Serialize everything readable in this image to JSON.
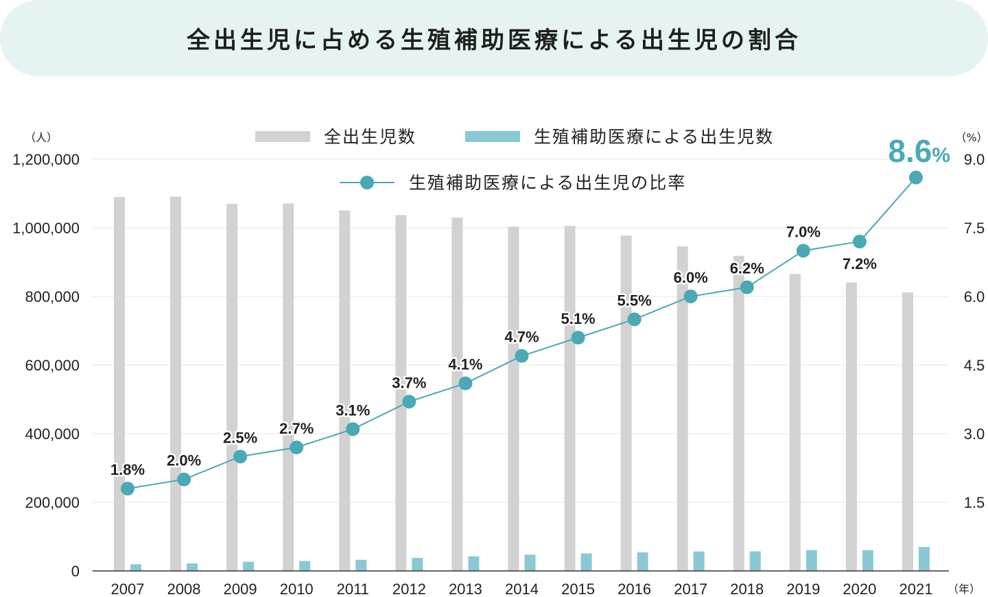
{
  "chart_data": {
    "type": "bar+line",
    "title": "全出生児に占める生殖補助医療による出生児の割合",
    "left_axis_unit": "（人）",
    "right_axis_unit": "（%）",
    "x_axis_unit": "（年）",
    "left_ylim": [
      0,
      1200000
    ],
    "right_ylim": [
      0,
      9.0
    ],
    "left_ticks": [
      "0",
      "200,000",
      "400,000",
      "600,000",
      "800,000",
      "1,000,000",
      "1,200,000"
    ],
    "left_tick_values": [
      0,
      200000,
      400000,
      600000,
      800000,
      1000000,
      1200000
    ],
    "right_ticks": [
      "1.5",
      "3.0",
      "4.5",
      "6.0",
      "7.5",
      "9.0"
    ],
    "right_tick_values": [
      1.5,
      3.0,
      4.5,
      6.0,
      7.5,
      9.0
    ],
    "categories": [
      "2007",
      "2008",
      "2009",
      "2010",
      "2011",
      "2012",
      "2013",
      "2014",
      "2015",
      "2016",
      "2017",
      "2018",
      "2019",
      "2020",
      "2021"
    ],
    "series": [
      {
        "name": "全出生児数",
        "type": "bar",
        "color": "#d2d2d2",
        "values": [
          1089818,
          1091156,
          1070036,
          1071305,
          1050807,
          1037232,
          1029817,
          1003609,
          1005721,
          977242,
          946146,
          918400,
          865239,
          840835,
          811622
        ]
      },
      {
        "name": "生殖補助医療による出生児数",
        "type": "bar",
        "color": "#8ac9d3",
        "values": [
          19595,
          21704,
          26680,
          28945,
          32426,
          37953,
          42554,
          47322,
          51001,
          54110,
          56617,
          56979,
          60598,
          60381,
          69797
        ]
      },
      {
        "name": "生殖補助医療による出生児の比率",
        "type": "line",
        "color": "#4aa9b5",
        "values": [
          1.8,
          2.0,
          2.5,
          2.7,
          3.1,
          3.7,
          4.1,
          4.7,
          5.1,
          5.5,
          6.0,
          6.2,
          7.0,
          7.2,
          8.6
        ],
        "labels": [
          "1.8%",
          "2.0%",
          "2.5%",
          "2.7%",
          "3.1%",
          "3.7%",
          "4.1%",
          "4.7%",
          "5.1%",
          "5.5%",
          "6.0%",
          "6.2%",
          "7.0%",
          "7.2%",
          "8.6%"
        ]
      }
    ],
    "highlight": {
      "number": "8.6",
      "percent_sign": "%",
      "color": "#4aa9b5"
    },
    "gridlines": true
  }
}
